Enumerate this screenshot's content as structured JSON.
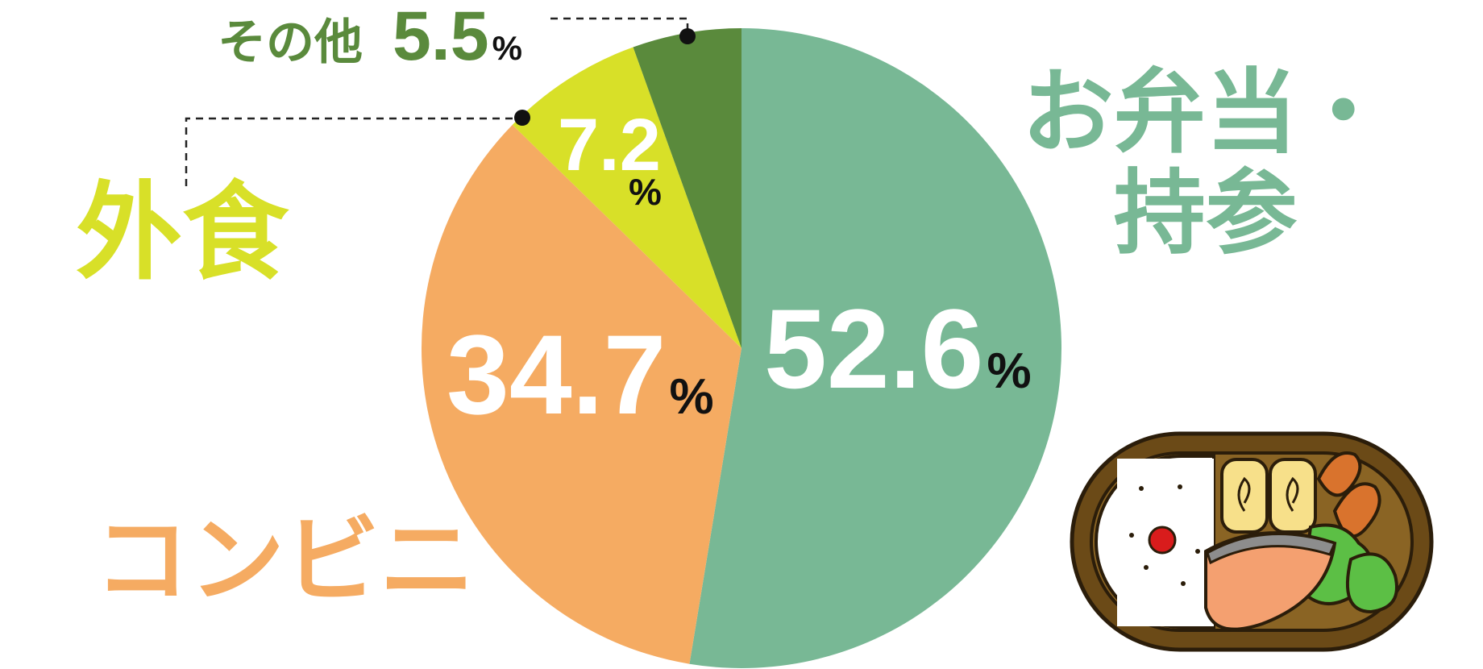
{
  "chart_data": {
    "type": "pie",
    "categories": [
      "お弁当・持参",
      "コンビニ",
      "外食",
      "その他"
    ],
    "values": [
      52.6,
      34.7,
      7.2,
      5.5
    ],
    "colors": [
      "#78b895",
      "#f5ab62",
      "#d8e028",
      "#5a8a3c"
    ],
    "unit": "%"
  }
}
